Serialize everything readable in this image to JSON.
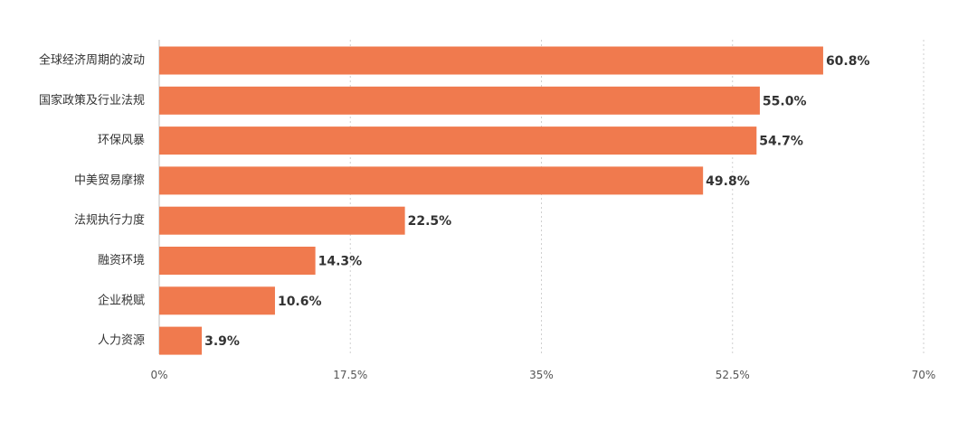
{
  "chart_data": {
    "type": "bar",
    "orientation": "horizontal",
    "title": "",
    "xlabel": "",
    "ylabel": "",
    "categories": [
      "全球经济周期的波动",
      "国家政策及行业法规",
      "环保风暴",
      "中美贸易摩擦",
      "法规执行力度",
      "融资环境",
      "企业税赋",
      "人力资源"
    ],
    "values": [
      60.8,
      55.0,
      54.7,
      49.8,
      22.5,
      14.3,
      10.6,
      3.9
    ],
    "value_labels": [
      "60.8%",
      "55.0%",
      "54.7%",
      "49.8%",
      "22.5%",
      "14.3%",
      "10.6%",
      "3.9%"
    ],
    "xlim": [
      0,
      70
    ],
    "ticks": [
      0,
      17.5,
      35,
      52.5,
      70
    ],
    "tick_labels": [
      "0%",
      "17.5%",
      "35%",
      "52.5%",
      "70%"
    ],
    "grid": true,
    "legend": "none",
    "bar_color": "#F07A4E"
  }
}
